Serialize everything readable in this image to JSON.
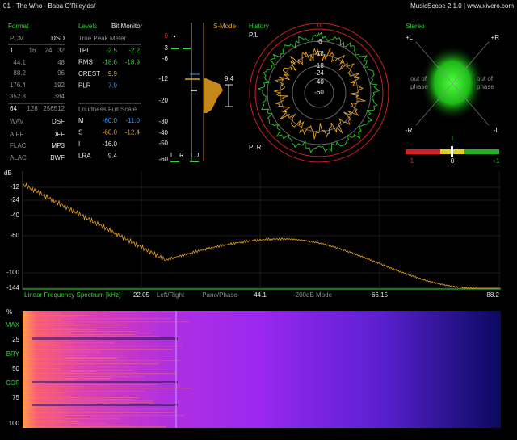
{
  "header": {
    "file": "01 - The Who - Baba O'Riley.dsf",
    "app": "MusicScope 2.1.0 | www.xivero.com"
  },
  "format": {
    "title": "Format",
    "rows": [
      [
        "PCM",
        "DSD"
      ],
      [
        "1",
        "16",
        "24",
        "32"
      ],
      [
        "44.1",
        "48"
      ],
      [
        "88.2",
        "96"
      ],
      [
        "176.4",
        "192"
      ],
      [
        "352.8",
        "384"
      ],
      [
        "64",
        "128",
        "256",
        "512"
      ],
      [
        "WAV",
        "DSF"
      ],
      [
        "AIFF",
        "DFF"
      ],
      [
        "FLAC",
        "MP3"
      ],
      [
        "ALAC",
        "BWF"
      ]
    ]
  },
  "levels": {
    "title": "Levels",
    "bit_monitor": "Bit Monitor",
    "true_peak": "True Peak Meter",
    "peak_rows": [
      [
        "TPL",
        "-2.5",
        "-2.2"
      ],
      [
        "RMS",
        "-18.6",
        "-18.9"
      ],
      [
        "CREST",
        "9.9"
      ],
      [
        "PLR",
        "7.9"
      ]
    ],
    "loudness": "Loudness Full Scale",
    "loudness_rows": [
      [
        "M",
        "-60.0",
        "-11.0"
      ],
      [
        "S",
        "-60.0",
        "-12.4"
      ],
      [
        "I",
        "-16.0"
      ],
      [
        "LRA",
        "9.4"
      ]
    ]
  },
  "meter": {
    "title": "S-Mode",
    "scale": [
      "0",
      "-3",
      "-6",
      "-12",
      "-20",
      "-30",
      "-40",
      "-50",
      "-60"
    ],
    "lra": "9.4",
    "channels": [
      "L",
      "R",
      "LU"
    ]
  },
  "history": {
    "title": "History",
    "top": "P/L",
    "bottom": "PLR",
    "rings": [
      "0",
      "-6",
      "-12",
      "-18",
      "-24",
      "-40",
      "-60"
    ]
  },
  "stereo": {
    "title": "Stereo",
    "corners": [
      "+L",
      "+R",
      "-R",
      "-L"
    ],
    "phase": [
      "out of",
      "phase"
    ],
    "correlation_marker": "I",
    "correlation": [
      "-1",
      "0",
      "+1"
    ]
  },
  "spectrum": {
    "unit": "dB",
    "scale": [
      "-12",
      "-24",
      "-40",
      "-60",
      "-100",
      "-144"
    ],
    "title": "Linear Frequency Spectrum [kHz]",
    "bottom": [
      "22.05",
      "Left/Right",
      "Pano/Phase",
      "44.1",
      "-200dB Mode",
      "66.15",
      "88.2"
    ]
  },
  "spectrogram": {
    "unit": "%",
    "scale": [
      "MAX",
      "25",
      "BRY",
      "50",
      "COF",
      "75",
      "100"
    ]
  }
}
